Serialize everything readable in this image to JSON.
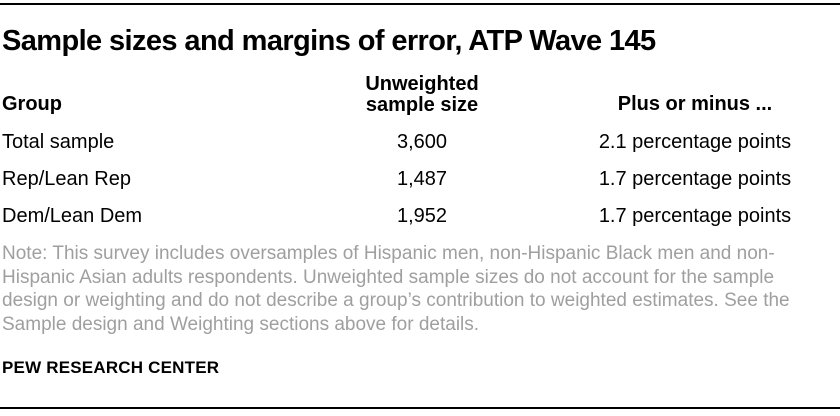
{
  "title": "Sample sizes and margins of error, ATP Wave 145",
  "table": {
    "headers": {
      "group": "Group",
      "unweighted": "Unweighted\nsample size",
      "margin": "Plus or minus ..."
    },
    "rows": [
      {
        "group": "Total sample",
        "unweighted": "3,600",
        "margin": "2.1 percentage points"
      },
      {
        "group": "Rep/Lean Rep",
        "unweighted": "1,487",
        "margin": "1.7 percentage points"
      },
      {
        "group": "Dem/Lean Dem",
        "unweighted": "1,952",
        "margin": "1.7 percentage points"
      }
    ]
  },
  "note": "Note: This survey includes oversamples of Hispanic men, non-Hispanic Black men and non-Hispanic Asian adults respondents. Unweighted sample sizes do not account for the sample design or weighting and do not describe a group’s contribution to weighted estimates. See the Sample design and Weighting sections above for details.",
  "footer": "PEW RESEARCH CENTER",
  "colors": {
    "text": "#000000",
    "note_text": "#9f9f9f",
    "rule": "#000000",
    "background": "#ffffff"
  },
  "chart_data": {
    "type": "table",
    "title": "Sample sizes and margins of error, ATP Wave 145",
    "columns": [
      "Group",
      "Unweighted sample size",
      "Plus or minus ..."
    ],
    "rows": [
      [
        "Total sample",
        "3,600",
        "2.1 percentage points"
      ],
      [
        "Rep/Lean Rep",
        "1,487",
        "1.7 percentage points"
      ],
      [
        "Dem/Lean Dem",
        "1,952",
        "1.7 percentage points"
      ]
    ],
    "sample_sizes": {
      "total": 3600,
      "rep_lean_rep": 1487,
      "dem_lean_dem": 1952
    },
    "margins_of_error_pct_points": {
      "total": 2.1,
      "rep_lean_rep": 1.7,
      "dem_lean_dem": 1.7
    },
    "note": "Note: This survey includes oversamples of Hispanic men, non-Hispanic Black men and non-Hispanic Asian adults respondents. Unweighted sample sizes do not account for the sample design or weighting and do not describe a group’s contribution to weighted estimates. See the Sample design and Weighting sections above for details.",
    "footer": "PEW RESEARCH CENTER",
    "legend_position": "none",
    "grid": false
  }
}
